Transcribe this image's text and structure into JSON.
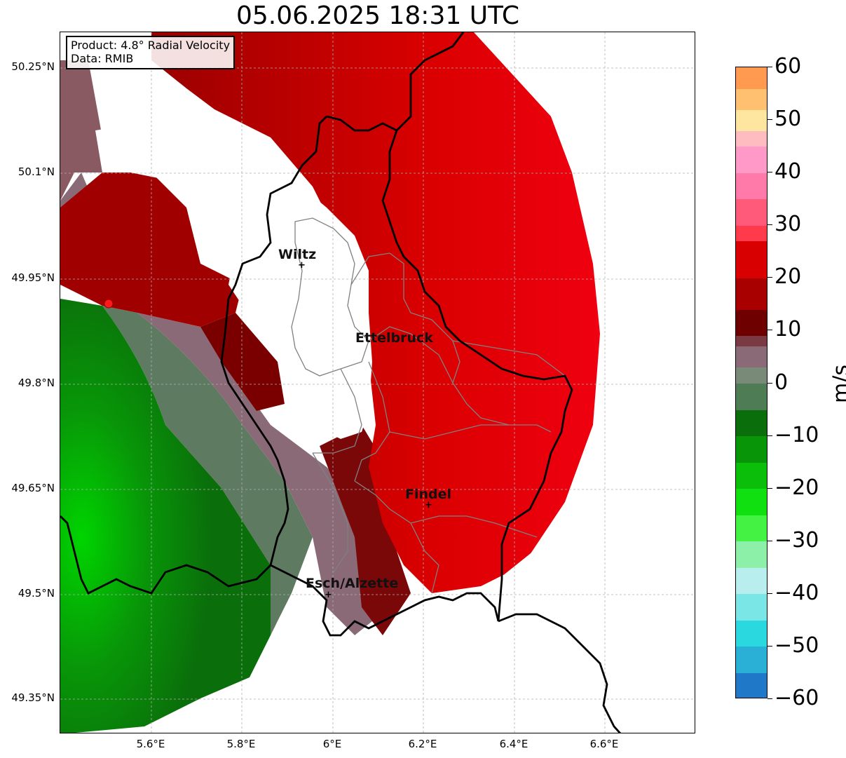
{
  "title": "05.06.2025 18:31 UTC",
  "info_box": {
    "product": "Product: 4.8° Radial Velocity",
    "data": "Data: RMIB"
  },
  "axes": {
    "lat_ticks": [
      "50.25°N",
      "50.1°N",
      "49.95°N",
      "49.8°N",
      "49.65°N",
      "49.5°N",
      "49.35°N"
    ],
    "lon_ticks": [
      "5.6°E",
      "5.8°E",
      "6°E",
      "6.2°E",
      "6.4°E",
      "6.6°E"
    ],
    "lat_range": [
      49.3,
      50.3
    ],
    "lon_range": [
      5.4,
      6.8
    ],
    "grid": true
  },
  "cities": [
    {
      "name": "Wiltz",
      "lon": 5.93,
      "lat": 49.97
    },
    {
      "name": "Ettelbruck",
      "lon": 6.1,
      "lat": 49.85
    },
    {
      "name": "Findel",
      "lon": 6.21,
      "lat": 49.63
    },
    {
      "name": "Esch/Alzette",
      "lon": 5.98,
      "lat": 49.5
    }
  ],
  "radar_site": {
    "lon": 5.505,
    "lat": 49.915,
    "color": "#ff1a1a"
  },
  "colorbar": {
    "label": "m/s",
    "min": -60,
    "max": 60,
    "ticks": [
      "60",
      "50",
      "40",
      "30",
      "20",
      "10",
      "0",
      "−10",
      "−20",
      "−30",
      "−40",
      "−50",
      "−60"
    ],
    "tick_values": [
      60,
      50,
      40,
      30,
      20,
      10,
      0,
      -10,
      -20,
      -30,
      -40,
      -50,
      -60
    ],
    "bands": [
      {
        "from": -60,
        "to": -55,
        "color": "#1f78c8"
      },
      {
        "from": -55,
        "to": -50,
        "color": "#2ab0d6"
      },
      {
        "from": -50,
        "to": -45,
        "color": "#2ad8e0"
      },
      {
        "from": -45,
        "to": -40,
        "color": "#7ae6e6"
      },
      {
        "from": -40,
        "to": -35,
        "color": "#b8eeee"
      },
      {
        "from": -35,
        "to": -30,
        "color": "#8cf0a8"
      },
      {
        "from": -30,
        "to": -25,
        "color": "#44f244"
      },
      {
        "from": -25,
        "to": -20,
        "color": "#10e010"
      },
      {
        "from": -20,
        "to": -15,
        "color": "#0abe0a"
      },
      {
        "from": -15,
        "to": -10,
        "color": "#089608"
      },
      {
        "from": -10,
        "to": -5,
        "color": "#0a6e0a"
      },
      {
        "from": -5,
        "to": 0,
        "color": "#4e7d55"
      },
      {
        "from": 0,
        "to": 3,
        "color": "#7a8a78"
      },
      {
        "from": 3,
        "to": 7,
        "color": "#8a6a76"
      },
      {
        "from": 7,
        "to": 9,
        "color": "#7a3a44"
      },
      {
        "from": 9,
        "to": 14,
        "color": "#6e0000"
      },
      {
        "from": 14,
        "to": 20,
        "color": "#a80000"
      },
      {
        "from": 20,
        "to": 27,
        "color": "#d80000"
      },
      {
        "from": 27,
        "to": 30,
        "color": "#ff3a4a"
      },
      {
        "from": 30,
        "to": 35,
        "color": "#ff5a7a"
      },
      {
        "from": 35,
        "to": 40,
        "color": "#ff7aa8"
      },
      {
        "from": 40,
        "to": 45,
        "color": "#ff9ac8"
      },
      {
        "from": 45,
        "to": 48,
        "color": "#ffbcc0"
      },
      {
        "from": 48,
        "to": 52,
        "color": "#ffe6a0"
      },
      {
        "from": 52,
        "to": 56,
        "color": "#ffc070"
      },
      {
        "from": 56,
        "to": 60,
        "color": "#ff9a50"
      }
    ]
  },
  "colors": {
    "approach_red": "#d80000",
    "recede_green": "#089608",
    "zero_gray": "#7a8a78",
    "border": "#000000",
    "canton": "#808080"
  }
}
